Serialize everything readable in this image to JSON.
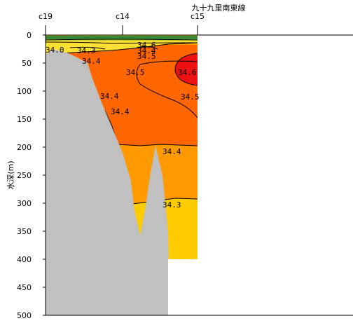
{
  "chart_data": {
    "type": "contour",
    "title": "九十九里南東線",
    "ylabel": "水深(m)",
    "xlabel": "",
    "ylim": [
      0,
      500
    ],
    "y_ticks": [
      0,
      50,
      100,
      150,
      200,
      250,
      300,
      350,
      400,
      450,
      500
    ],
    "stations": [
      "c19",
      "c14",
      "c15"
    ],
    "contour_labels": [
      "34.0",
      "34.3",
      "34.4",
      "34.6",
      "34.4",
      "34.5",
      "34.5",
      "34.6",
      "34.4",
      "34.5",
      "34.4",
      "34.4",
      "34.3"
    ],
    "bands": [
      {
        "range": "<34.0",
        "color": "#3a8a3a"
      },
      {
        "range": "34.0-34.3",
        "color": "#ffe033"
      },
      {
        "range": "34.3-34.4",
        "color": "#ffcc00"
      },
      {
        "range": "34.4-34.5",
        "color": "#ff9900"
      },
      {
        "range": "34.5-34.6",
        "color": "#ff6600"
      },
      {
        "range": ">34.6",
        "color": "#ee1111"
      }
    ],
    "colors": {
      "seabed": "#c0c0c0"
    }
  }
}
